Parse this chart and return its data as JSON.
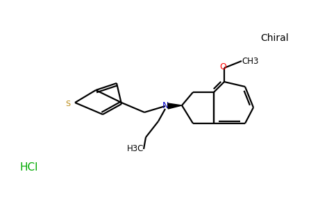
{
  "background_color": "#ffffff",
  "line_color": "#000000",
  "sulfur_color": "#b8860b",
  "nitrogen_color": "#0000cd",
  "oxygen_color": "#ff0000",
  "hcl_color": "#00aa00",
  "chiral_text": "Chiral",
  "hcl_text": "HCl",
  "n_text": "N",
  "s_text": "S",
  "o_text": "O",
  "ch3_text": "CH3",
  "h3c_text": "H3C",
  "line_width": 1.6,
  "figsize": [
    4.84,
    3.0
  ],
  "dpi": 100
}
